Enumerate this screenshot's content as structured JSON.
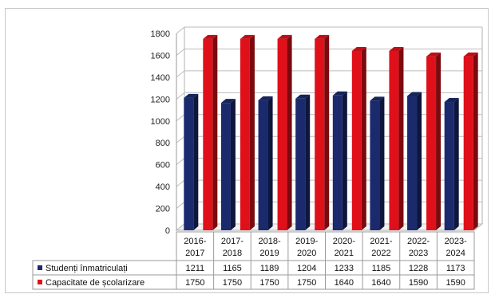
{
  "chart_data": {
    "type": "bar",
    "title": "",
    "xlabel": "",
    "ylabel": "",
    "ylim": [
      0,
      1800
    ],
    "yticks": [
      0,
      200,
      400,
      600,
      800,
      1000,
      1200,
      1400,
      1600,
      1800
    ],
    "grid": true,
    "legend_placement": "data-table-left",
    "categories": [
      [
        "2016-",
        "2017"
      ],
      [
        "2017-",
        "2018"
      ],
      [
        "2018-",
        "2019"
      ],
      [
        "2019-",
        "2020"
      ],
      [
        "2020-",
        "2021"
      ],
      [
        "2021-",
        "2022"
      ],
      [
        "2022-",
        "2023"
      ],
      [
        "2023-",
        "2024"
      ]
    ],
    "series": [
      {
        "name": "Studenți înmatriculați",
        "color": "#1a2a6c",
        "values": [
          1211,
          1165,
          1189,
          1204,
          1233,
          1185,
          1228,
          1173
        ]
      },
      {
        "name": "Capacitate de școlarizare",
        "color": "#e0101a",
        "values": [
          1750,
          1750,
          1750,
          1750,
          1640,
          1640,
          1590,
          1590
        ]
      }
    ]
  }
}
